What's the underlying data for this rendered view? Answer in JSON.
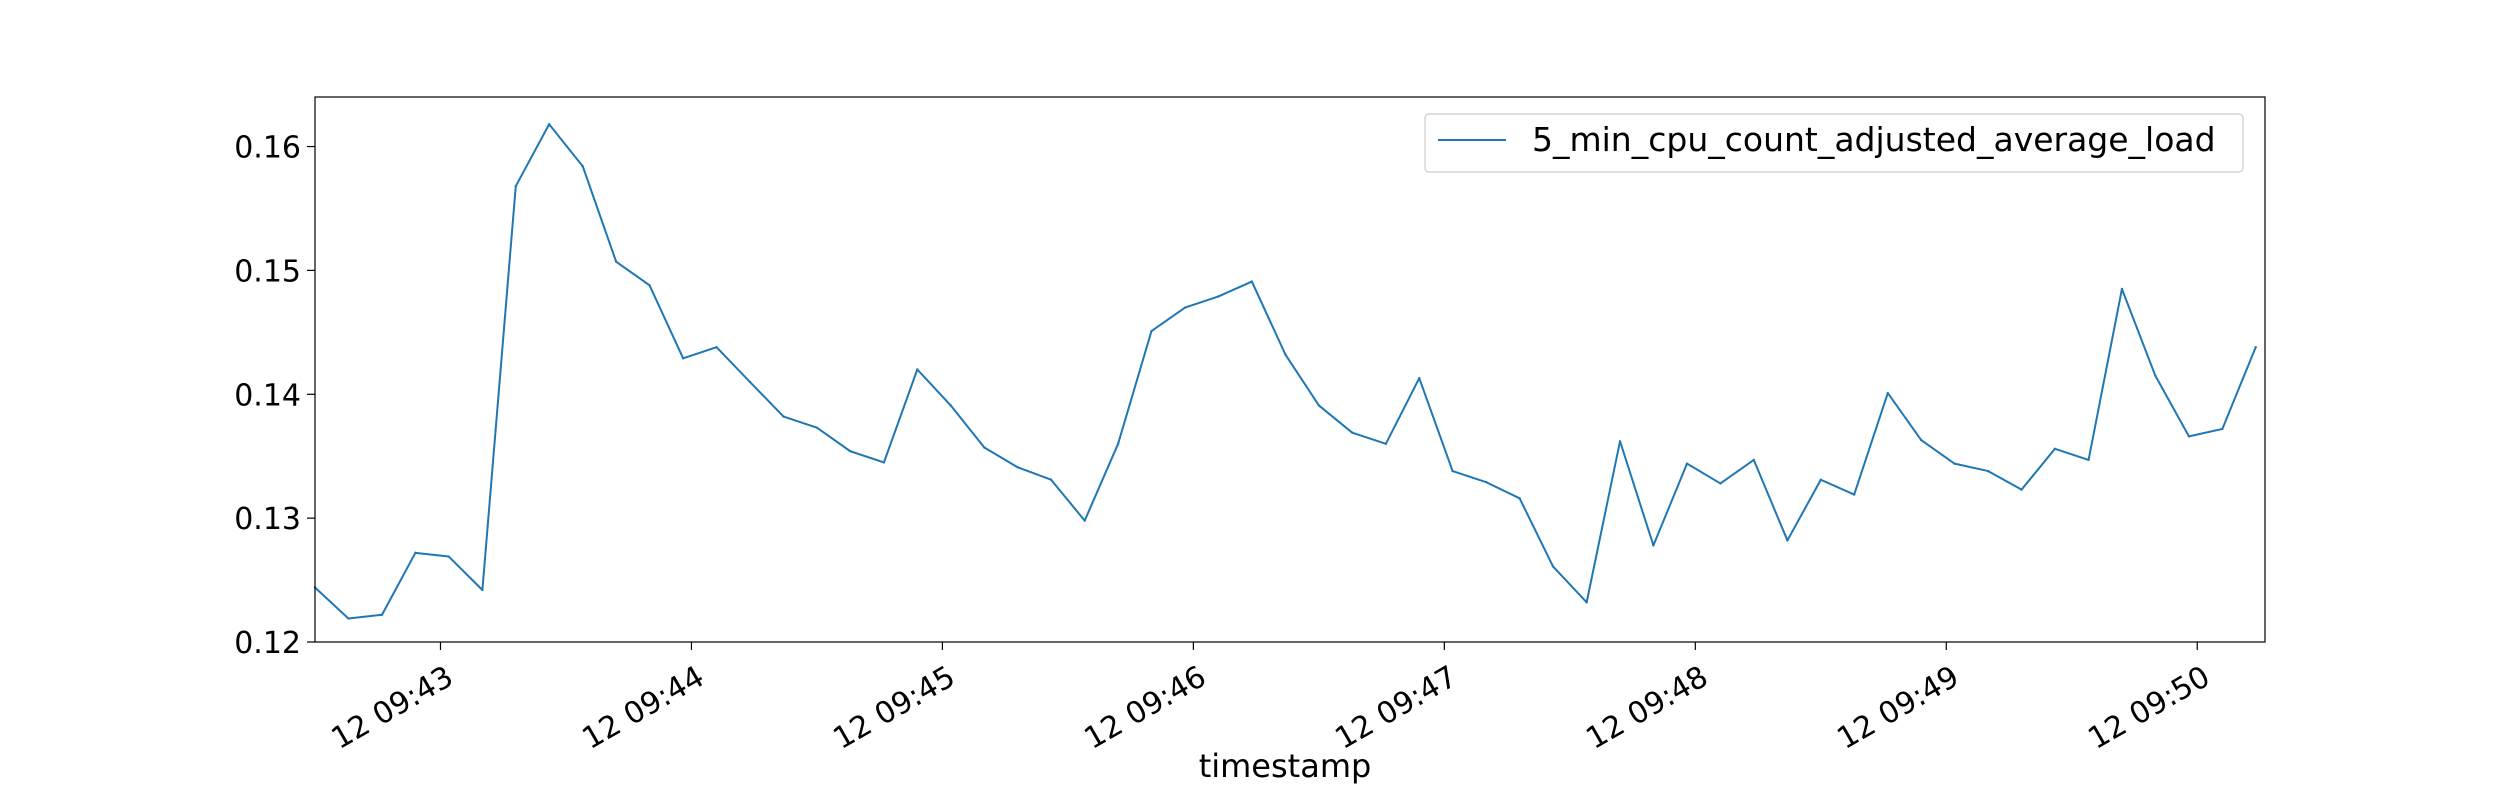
{
  "chart_data": {
    "type": "line",
    "title": "",
    "xlabel": "timestamp",
    "ylabel": "",
    "ylim": [
      0.12,
      0.164
    ],
    "xlim_minutes": [
      42.5,
      50.27
    ],
    "x_ticks": [
      {
        "t": 43,
        "label": "12 09:43"
      },
      {
        "t": 44,
        "label": "12 09:44"
      },
      {
        "t": 45,
        "label": "12 09:45"
      },
      {
        "t": 46,
        "label": "12 09:46"
      },
      {
        "t": 47,
        "label": "12 09:47"
      },
      {
        "t": 48,
        "label": "12 09:48"
      },
      {
        "t": 49,
        "label": "12 09:49"
      },
      {
        "t": 50,
        "label": "12 09:50"
      }
    ],
    "y_ticks": [
      {
        "v": 0.12,
        "label": "0.12"
      },
      {
        "v": 0.13,
        "label": "0.13"
      },
      {
        "v": 0.14,
        "label": "0.14"
      },
      {
        "v": 0.15,
        "label": "0.15"
      },
      {
        "v": 0.16,
        "label": "0.16"
      }
    ],
    "legend": {
      "placement": "top-right"
    },
    "grid": false,
    "series": [
      {
        "name": "5_min_cpu_count_adjusted_average_load",
        "color": "#1f77b4",
        "x": [
          42.5,
          42.633,
          42.767,
          42.9,
          43.033,
          43.167,
          43.3,
          43.433,
          43.567,
          43.7,
          43.833,
          43.967,
          44.1,
          44.233,
          44.367,
          44.5,
          44.633,
          44.767,
          44.9,
          45.033,
          45.167,
          45.3,
          45.433,
          45.567,
          45.7,
          45.833,
          45.967,
          46.1,
          46.233,
          46.367,
          46.5,
          46.633,
          46.767,
          46.9,
          47.033,
          47.167,
          47.3,
          47.433,
          47.567,
          47.7,
          47.833,
          47.967,
          48.1,
          48.233,
          48.367,
          48.5,
          48.633,
          48.767,
          48.9,
          49.033,
          49.167,
          49.3,
          49.433,
          49.567,
          49.7,
          49.833,
          49.967,
          50.1,
          50.233
        ],
        "y": [
          0.1244,
          0.1219,
          0.1222,
          0.1272,
          0.1269,
          0.1242,
          0.1568,
          0.1618,
          0.1584,
          0.1507,
          0.1488,
          0.1429,
          0.1438,
          0.141,
          0.1382,
          0.1373,
          0.1354,
          0.1345,
          0.142,
          0.1391,
          0.1357,
          0.1341,
          0.1331,
          0.1298,
          0.136,
          0.1451,
          0.147,
          0.1479,
          0.1491,
          0.1432,
          0.1391,
          0.1369,
          0.136,
          0.1413,
          0.1338,
          0.1329,
          0.1316,
          0.1261,
          0.1232,
          0.1362,
          0.1278,
          0.1344,
          0.1328,
          0.1347,
          0.1282,
          0.1331,
          0.1319,
          0.1401,
          0.1363,
          0.1344,
          0.1338,
          0.1323,
          0.1356,
          0.1347,
          0.1485,
          0.1415,
          0.1366,
          0.1372,
          0.1438
        ]
      }
    ]
  }
}
